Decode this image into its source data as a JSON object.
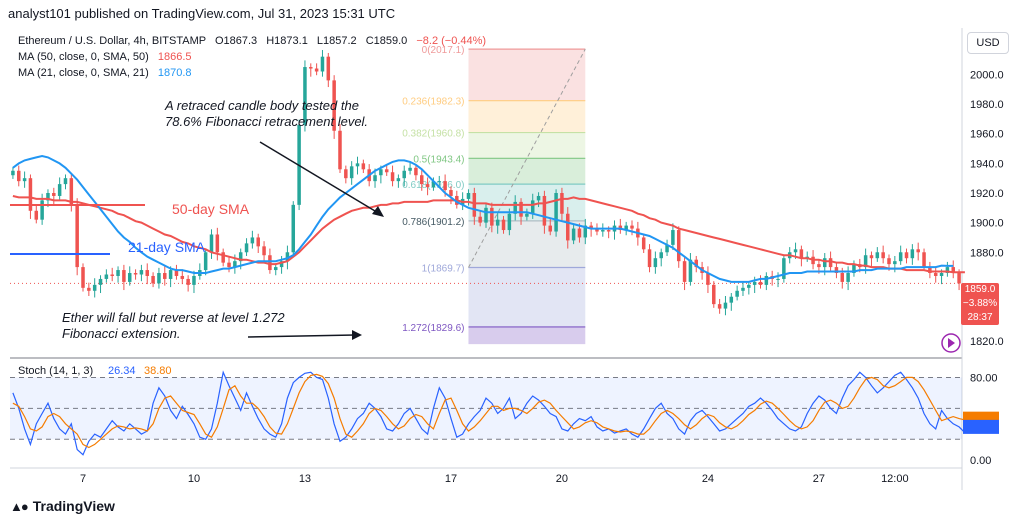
{
  "header": {
    "publisher": "analyst101 published on TradingView.com, Jul 31, 2023 15:31 UTC"
  },
  "symbol": {
    "name": "Ethereum / U.S. Dollar, 4h, BITSTAMP",
    "o": "O1867.3",
    "h": "H1873.1",
    "l": "L1857.2",
    "c": "C1859.0",
    "chg": "−8.2 (−0.44%)"
  },
  "indicators": {
    "ma50": {
      "label": "MA (50, close, 0, SMA, 50)",
      "value": "1866.5",
      "color": "#ef5350"
    },
    "ma21": {
      "label": "MA (21, close, 0, SMA, 21)",
      "value": "1870.8",
      "color": "#2196f3"
    }
  },
  "currency_button": "USD",
  "price_box": {
    "price": "1859.0",
    "change": "−3.88%",
    "timer": "28:37"
  },
  "branding": "TradingView",
  "colors": {
    "up": "#26a69a",
    "down": "#ef5350",
    "ma50": "#ef5350",
    "ma21": "#2196f3",
    "stochK": "#2962ff",
    "stochD": "#f57c00"
  },
  "annotations": {
    "retrace": [
      "A retraced candle body tested the",
      "78.6% Fibonacci retracement level."
    ],
    "sma50": "50-day SMA",
    "sma21": "21-day SMA",
    "fall": [
      "Ether will fall but reverse at level 1.272",
      "Fibonacci extension."
    ]
  },
  "chart_data": {
    "type": "candlestick",
    "title": "Ethereum / U.S. Dollar, 4h, BITSTAMP",
    "ylim": [
      1810,
      2030
    ],
    "y_ticks": [
      "2000.0",
      "1980.0",
      "1960.0",
      "1940.0",
      "1920.0",
      "1900.0",
      "1880.0",
      "1820.0"
    ],
    "x_ticks": [
      "7",
      "10",
      "13",
      "17",
      "20",
      "24",
      "27",
      "12:00"
    ],
    "x_tick_index": [
      12,
      31,
      50,
      75,
      94,
      119,
      138,
      151
    ],
    "fib_levels": [
      {
        "label": "0(2017.1)",
        "value": 2017.1,
        "color": "#ef9a9a"
      },
      {
        "label": "0.236(1982.3)",
        "value": 1982.3,
        "color": "#ffcc80"
      },
      {
        "label": "0.382(1960.8)",
        "value": 1960.8,
        "color": "#c5e1a5"
      },
      {
        "label": "0.5(1943.4)",
        "value": 1943.4,
        "color": "#81c784"
      },
      {
        "label": "0.618(1926.0)",
        "value": 1926.0,
        "color": "#80cbc4"
      },
      {
        "label": "0.786(1901.2)",
        "value": 1901.2,
        "color": "#b0bec5"
      },
      {
        "label": "1(1869.7)",
        "value": 1869.7,
        "color": "#9fa8da"
      },
      {
        "label": "1.272(1829.6)",
        "value": 1829.6,
        "color": "#7e57c2"
      }
    ],
    "fib_extra_bottom": 1818,
    "fib_index_range": [
      78,
      98
    ],
    "close": [
      1935,
      1928,
      1930,
      1908,
      1902,
      1915,
      1920,
      1918,
      1926,
      1930,
      1912,
      1870,
      1856,
      1854,
      1858,
      1862,
      1865,
      1864,
      1868,
      1860,
      1866,
      1865,
      1868,
      1864,
      1859,
      1866,
      1862,
      1868,
      1864,
      1862,
      1858,
      1864,
      1868,
      1880,
      1892,
      1880,
      1873,
      1870,
      1874,
      1880,
      1886,
      1890,
      1884,
      1878,
      1868,
      1870,
      1874,
      1880,
      1912,
      1966,
      2005,
      2004,
      2002,
      2012,
      1996,
      1962,
      1936,
      1930,
      1938,
      1940,
      1936,
      1928,
      1932,
      1936,
      1934,
      1928,
      1930,
      1935,
      1937,
      1932,
      1926,
      1924,
      1928,
      1928,
      1922,
      1918,
      1912,
      1916,
      1920,
      1904,
      1900,
      1910,
      1898,
      1902,
      1895,
      1906,
      1914,
      1904,
      1906,
      1915,
      1918,
      1898,
      1894,
      1920,
      1906,
      1888,
      1896,
      1890,
      1898,
      1896,
      1894,
      1895,
      1894,
      1898,
      1895,
      1898,
      1896,
      1890,
      1882,
      1870,
      1876,
      1880,
      1885,
      1895,
      1874,
      1860,
      1875,
      1870,
      1866,
      1858,
      1845,
      1842,
      1846,
      1850,
      1854,
      1856,
      1858,
      1860,
      1858,
      1864,
      1862,
      1862,
      1876,
      1880,
      1882,
      1876,
      1877,
      1872,
      1870,
      1876,
      1870,
      1866,
      1860,
      1866,
      1872,
      1870,
      1878,
      1876,
      1880,
      1876,
      1872,
      1874,
      1880,
      1876,
      1882,
      1880,
      1870,
      1866,
      1864,
      1866,
      1870,
      1866,
      1859
    ],
    "ma50": [
      1918,
      1917,
      1917,
      1917,
      1916,
      1916,
      1916,
      1915,
      1915,
      1915,
      1914,
      1914,
      1913,
      1912,
      1911,
      1910,
      1909,
      1908,
      1906,
      1905,
      1903,
      1901,
      1900,
      1898,
      1896,
      1894,
      1892,
      1891,
      1889,
      1887,
      1886,
      1884,
      1883,
      1882,
      1880,
      1879,
      1878,
      1877,
      1876,
      1875,
      1875,
      1874,
      1873,
      1873,
      1872,
      1872,
      1873,
      1874,
      1877,
      1880,
      1884,
      1888,
      1892,
      1896,
      1899,
      1902,
      1904,
      1906,
      1908,
      1909,
      1910,
      1910,
      1911,
      1912,
      1912,
      1913,
      1913,
      1914,
      1914,
      1914,
      1914,
      1914,
      1915,
      1915,
      1915,
      1915,
      1915,
      1914,
      1914,
      1913,
      1913,
      1913,
      1912,
      1912,
      1912,
      1912,
      1912,
      1912,
      1912,
      1912,
      1913,
      1913,
      1914,
      1915,
      1916,
      1916,
      1917,
      1916,
      1916,
      1915,
      1914,
      1913,
      1912,
      1911,
      1910,
      1909,
      1908,
      1906,
      1905,
      1903,
      1902,
      1900,
      1899,
      1898,
      1896,
      1895,
      1894,
      1893,
      1892,
      1891,
      1890,
      1889,
      1888,
      1887,
      1886,
      1885,
      1884,
      1883,
      1882,
      1881,
      1880,
      1879,
      1878,
      1878,
      1877,
      1876,
      1876,
      1875,
      1875,
      1874,
      1874,
      1873,
      1873,
      1872,
      1872,
      1871,
      1871,
      1870,
      1870,
      1870,
      1869,
      1869,
      1869,
      1868,
      1868,
      1868,
      1868,
      1867,
      1867,
      1867,
      1867,
      1866.5,
      1866.5,
      1866.5
    ],
    "ma21": [
      1937,
      1940,
      1942,
      1943,
      1944,
      1945,
      1944,
      1942,
      1940,
      1937,
      1933,
      1929,
      1924,
      1919,
      1914,
      1909,
      1904,
      1899,
      1894,
      1890,
      1887,
      1883,
      1880,
      1877,
      1875,
      1873,
      1871,
      1869,
      1868,
      1868,
      1867,
      1866,
      1866,
      1866,
      1867,
      1868,
      1869,
      1869,
      1870,
      1871,
      1872,
      1873,
      1874,
      1874,
      1874,
      1874,
      1875,
      1876,
      1878,
      1882,
      1887,
      1892,
      1898,
      1904,
      1909,
      1913,
      1917,
      1920,
      1923,
      1926,
      1929,
      1932,
      1935,
      1937,
      1939,
      1941,
      1942,
      1942,
      1941,
      1939,
      1936,
      1932,
      1928,
      1924,
      1920,
      1917,
      1914,
      1912,
      1910,
      1909,
      1908,
      1907,
      1907,
      1907,
      1907,
      1907,
      1907,
      1907,
      1907,
      1906,
      1905,
      1904,
      1903,
      1902,
      1901,
      1900,
      1899,
      1898,
      1897,
      1896,
      1896,
      1896,
      1896,
      1896,
      1896,
      1895,
      1894,
      1893,
      1892,
      1891,
      1889,
      1887,
      1885,
      1883,
      1880,
      1877,
      1874,
      1871,
      1868,
      1866,
      1864,
      1862,
      1861,
      1860,
      1860,
      1860,
      1860,
      1861,
      1862,
      1862,
      1863,
      1864,
      1865,
      1866,
      1866,
      1866,
      1867,
      1867,
      1867,
      1867,
      1867,
      1867,
      1867,
      1867,
      1867,
      1868,
      1868,
      1868,
      1869,
      1869,
      1869,
      1869,
      1869,
      1870,
      1870,
      1870,
      1870,
      1870,
      1870,
      1871,
      1870.8,
      1870.8
    ],
    "stoch": {
      "label": "Stoch (14, 1, 3)",
      "k_label": "26.34",
      "d_label": "38.80",
      "ylim": [
        -5,
        95
      ],
      "y_ticks": [
        "80.00",
        "40.00",
        "0.00"
      ],
      "band": [
        20,
        80
      ],
      "k": [
        65,
        50,
        30,
        15,
        35,
        45,
        55,
        40,
        30,
        25,
        35,
        10,
        5,
        18,
        25,
        22,
        30,
        38,
        32,
        28,
        35,
        30,
        25,
        28,
        55,
        70,
        62,
        48,
        40,
        52,
        44,
        35,
        22,
        20,
        30,
        55,
        85,
        72,
        60,
        48,
        65,
        52,
        40,
        30,
        25,
        22,
        35,
        60,
        75,
        80,
        84,
        85,
        80,
        78,
        60,
        35,
        18,
        22,
        30,
        40,
        45,
        55,
        50,
        42,
        30,
        28,
        35,
        45,
        50,
        40,
        30,
        25,
        50,
        70,
        60,
        40,
        22,
        25,
        35,
        42,
        48,
        60,
        55,
        45,
        50,
        60,
        40,
        45,
        55,
        62,
        58,
        52,
        45,
        42,
        30,
        28,
        35,
        40,
        38,
        42,
        32,
        28,
        30,
        26,
        28,
        30,
        25,
        22,
        30,
        40,
        50,
        55,
        45,
        40,
        30,
        25,
        38,
        45,
        48,
        42,
        35,
        28,
        30,
        35,
        40,
        45,
        52,
        55,
        60,
        55,
        48,
        40,
        35,
        30,
        28,
        32,
        45,
        55,
        62,
        58,
        50,
        45,
        60,
        72,
        78,
        85,
        80,
        72,
        65,
        70,
        76,
        82,
        85,
        78,
        70,
        60,
        45,
        35,
        30,
        48,
        40,
        35,
        32,
        26.34
      ],
      "d": [
        55,
        52,
        42,
        30,
        28,
        32,
        42,
        45,
        42,
        35,
        30,
        25,
        15,
        12,
        15,
        20,
        25,
        30,
        33,
        32,
        30,
        31,
        30,
        28,
        35,
        50,
        60,
        62,
        55,
        48,
        46,
        44,
        35,
        25,
        22,
        32,
        50,
        68,
        72,
        62,
        55,
        55,
        50,
        42,
        32,
        26,
        25,
        35,
        50,
        65,
        76,
        82,
        83,
        81,
        74,
        60,
        40,
        25,
        22,
        28,
        35,
        45,
        50,
        48,
        42,
        35,
        30,
        33,
        40,
        44,
        42,
        35,
        30,
        45,
        58,
        60,
        48,
        35,
        28,
        32,
        38,
        45,
        52,
        52,
        48,
        50,
        50,
        48,
        45,
        50,
        56,
        58,
        55,
        48,
        42,
        36,
        30,
        32,
        36,
        38,
        36,
        32,
        30,
        28,
        27,
        28,
        27,
        25,
        25,
        30,
        38,
        45,
        48,
        45,
        40,
        34,
        30,
        34,
        40,
        44,
        42,
        36,
        32,
        30,
        33,
        38,
        44,
        48,
        54,
        57,
        55,
        50,
        44,
        38,
        33,
        30,
        32,
        38,
        48,
        56,
        58,
        55,
        50,
        52,
        60,
        70,
        78,
        80,
        78,
        72,
        70,
        72,
        76,
        80,
        80,
        76,
        68,
        58,
        48,
        38,
        40,
        42,
        40,
        38.8
      ]
    }
  }
}
